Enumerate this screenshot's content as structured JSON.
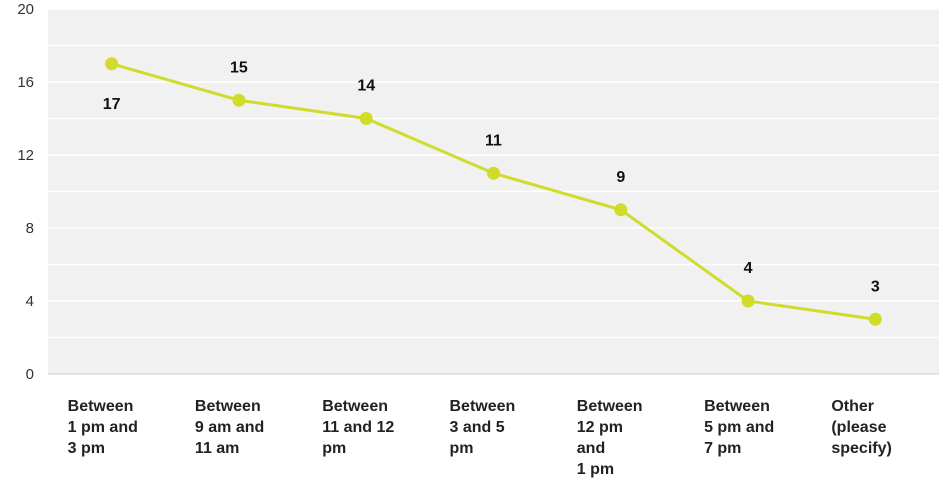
{
  "chart_data": {
    "type": "line",
    "categories": [
      "Between\n1 pm and\n3 pm",
      "Between\n9 am and\n11 am",
      "Between\n11 and 12\npm",
      "Between\n3 and 5\npm",
      "Between\n12 pm\nand\n1 pm",
      "Between\n5 pm and\n7 pm",
      "Other\n(please\nspecify)"
    ],
    "values": [
      17,
      15,
      14,
      11,
      9,
      4,
      3
    ],
    "data_labels": [
      "17",
      "15",
      "14",
      "11",
      "9",
      "4",
      "3"
    ],
    "ylim": [
      0,
      20
    ],
    "yticks": [
      "0",
      "4",
      "8",
      "12",
      "16",
      "20"
    ],
    "title": "",
    "xlabel": "",
    "ylabel": "",
    "grid": true,
    "colors": {
      "line": "#cfdc2c",
      "plot_bg": "#f1f1f1",
      "grid": "#ffffff"
    }
  }
}
